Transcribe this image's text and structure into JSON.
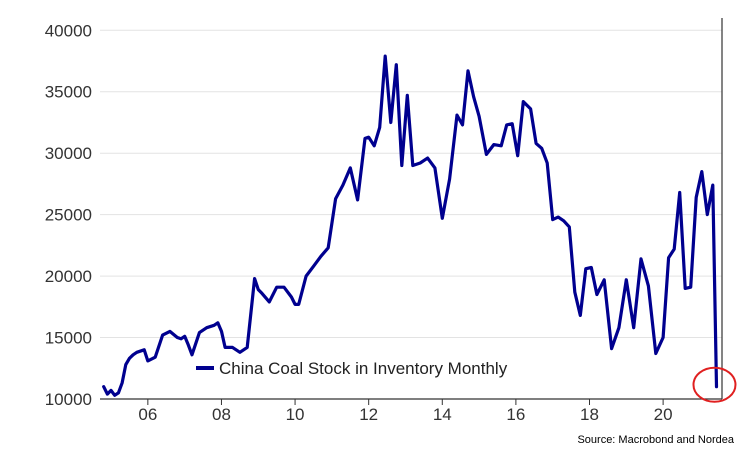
{
  "chart_data": {
    "type": "line",
    "series": [
      {
        "name": "China Coal Stock in Inventory Monthly",
        "color": "#00008f",
        "x": [
          2004.8,
          2004.9,
          2005.0,
          2005.1,
          2005.2,
          2005.3,
          2005.4,
          2005.5,
          2005.6,
          2005.7,
          2005.9,
          2006.0,
          2006.2,
          2006.4,
          2006.6,
          2006.8,
          2006.9,
          2007.0,
          2007.1,
          2007.2,
          2007.4,
          2007.6,
          2007.8,
          2007.9,
          2008.0,
          2008.1,
          2008.3,
          2008.5,
          2008.7,
          2008.9,
          2009.0,
          2009.1,
          2009.3,
          2009.5,
          2009.7,
          2009.9,
          2010.0,
          2010.1,
          2010.3,
          2010.5,
          2010.7,
          2010.9,
          2011.1,
          2011.3,
          2011.5,
          2011.7,
          2011.9,
          2012.0,
          2012.15,
          2012.3,
          2012.45,
          2012.6,
          2012.75,
          2012.9,
          2013.05,
          2013.2,
          2013.4,
          2013.6,
          2013.8,
          2014.0,
          2014.2,
          2014.4,
          2014.55,
          2014.7,
          2014.85,
          2015.0,
          2015.2,
          2015.4,
          2015.6,
          2015.75,
          2015.9,
          2016.05,
          2016.2,
          2016.4,
          2016.55,
          2016.7,
          2016.85,
          2017.0,
          2017.15,
          2017.3,
          2017.45,
          2017.6,
          2017.75,
          2017.9,
          2018.05,
          2018.2,
          2018.4,
          2018.6,
          2018.8,
          2019.0,
          2019.2,
          2019.4,
          2019.6,
          2019.8,
          2020.0,
          2020.15,
          2020.3,
          2020.45,
          2020.6,
          2020.75,
          2020.9,
          2021.05,
          2021.2,
          2021.35,
          2021.45
        ],
        "y": [
          11000,
          10400,
          10700,
          10300,
          10500,
          11300,
          12800,
          13300,
          13600,
          13800,
          14000,
          13100,
          13400,
          15200,
          15500,
          15000,
          14900,
          15100,
          14400,
          13600,
          15400,
          15800,
          16000,
          16200,
          15500,
          14200,
          14200,
          13800,
          14200,
          19800,
          18900,
          18600,
          17900,
          19100,
          19100,
          18300,
          17700,
          17700,
          20000,
          20800,
          21600,
          22300,
          26300,
          27400,
          28800,
          26200,
          31200,
          31300,
          30600,
          32100,
          37900,
          32500,
          37200,
          29000,
          34700,
          29000,
          29200,
          29600,
          28800,
          24700,
          27900,
          33100,
          32300,
          36700,
          34600,
          33000,
          29900,
          30700,
          30600,
          32300,
          32400,
          29800,
          34200,
          33600,
          30800,
          30400,
          29200,
          24600,
          24800,
          24500,
          24000,
          18700,
          16800,
          20600,
          20700,
          18500,
          19700,
          14100,
          15800,
          19700,
          15800,
          21400,
          19200,
          13700,
          15000,
          21500,
          22200,
          26800,
          19000,
          19100,
          26400,
          28500,
          25000,
          27400,
          11000
        ]
      }
    ],
    "xlim": [
      2004.7,
      2021.6
    ],
    "ylim": [
      10000,
      41000
    ],
    "x_ticks": [
      {
        "value": 2006,
        "label": "06"
      },
      {
        "value": 2008,
        "label": "08"
      },
      {
        "value": 2010,
        "label": "10"
      },
      {
        "value": 2012,
        "label": "12"
      },
      {
        "value": 2014,
        "label": "14"
      },
      {
        "value": 2016,
        "label": "16"
      },
      {
        "value": 2018,
        "label": "18"
      },
      {
        "value": 2020,
        "label": "20"
      }
    ],
    "y_ticks": [
      {
        "value": 10000,
        "label": "10000"
      },
      {
        "value": 15000,
        "label": "15000"
      },
      {
        "value": 20000,
        "label": "20000"
      },
      {
        "value": 25000,
        "label": "25000"
      },
      {
        "value": 30000,
        "label": "30000"
      },
      {
        "value": 35000,
        "label": "35000"
      },
      {
        "value": 40000,
        "label": "40000"
      }
    ],
    "grid": true,
    "legend_position": "bottom-center",
    "annotation": {
      "type": "circle",
      "x": 2021.45,
      "y": 11000,
      "color": "#e02020"
    },
    "source": "Source: Macrobond and Nordea"
  }
}
